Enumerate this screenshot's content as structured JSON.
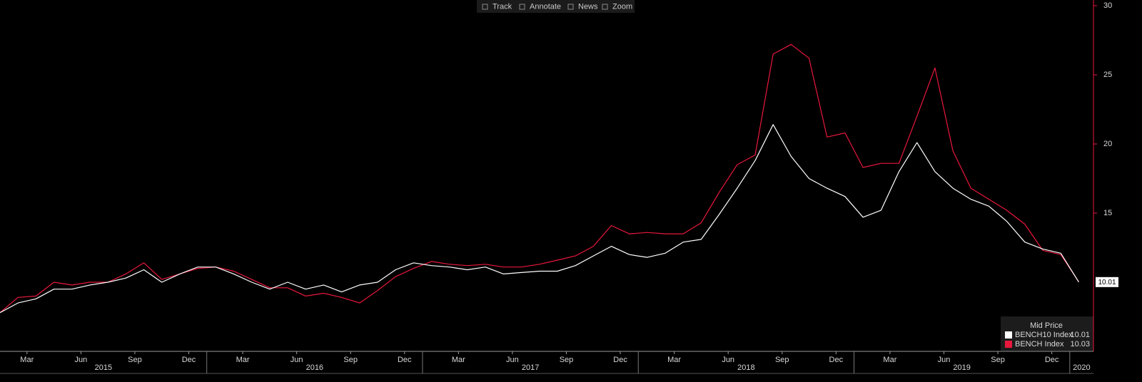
{
  "toolbar": [
    "Track",
    "Annotate",
    "News",
    "Zoom"
  ],
  "chart_data": {
    "type": "line",
    "x": [
      "2015-01",
      "2015-02",
      "2015-03",
      "2015-04",
      "2015-05",
      "2015-06",
      "2015-07",
      "2015-08",
      "2015-09",
      "2015-10",
      "2015-11",
      "2015-12",
      "2016-01",
      "2016-02",
      "2016-03",
      "2016-04",
      "2016-05",
      "2016-06",
      "2016-07",
      "2016-08",
      "2016-09",
      "2016-10",
      "2016-11",
      "2016-12",
      "2017-01",
      "2017-02",
      "2017-03",
      "2017-04",
      "2017-05",
      "2017-06",
      "2017-07",
      "2017-08",
      "2017-09",
      "2017-10",
      "2017-11",
      "2017-12",
      "2018-01",
      "2018-02",
      "2018-03",
      "2018-04",
      "2018-05",
      "2018-06",
      "2018-07",
      "2018-08",
      "2018-09",
      "2018-10",
      "2018-11",
      "2018-12",
      "2019-01",
      "2019-02",
      "2019-03",
      "2019-04",
      "2019-05",
      "2019-06",
      "2019-07",
      "2019-08",
      "2019-09",
      "2019-10",
      "2019-11",
      "2019-12",
      "2020-01"
    ],
    "series": [
      {
        "name": "BENCH10 Index",
        "color": "#ffffff",
        "values": [
          7.8,
          8.5,
          8.8,
          9.5,
          9.5,
          9.8,
          10.0,
          10.3,
          10.9,
          10.0,
          10.6,
          11.1,
          11.1,
          10.6,
          10.0,
          9.5,
          10.0,
          9.5,
          9.8,
          9.3,
          9.8,
          10.0,
          10.9,
          11.4,
          11.2,
          11.1,
          10.9,
          11.1,
          10.6,
          10.7,
          10.8,
          10.8,
          11.2,
          11.9,
          12.6,
          12.0,
          11.8,
          12.1,
          12.9,
          13.1,
          14.9,
          16.8,
          18.8,
          21.4,
          19.1,
          17.5,
          16.8,
          16.2,
          14.7,
          15.2,
          18.0,
          20.1,
          18.0,
          16.8,
          16.0,
          15.5,
          14.4,
          12.9,
          12.4,
          12.1,
          10.01
        ]
      },
      {
        "name": "BENCH Index",
        "color": "#e8183c",
        "values": [
          7.8,
          8.9,
          9.0,
          10.0,
          9.8,
          10.0,
          10.0,
          10.6,
          11.4,
          10.2,
          10.6,
          11.0,
          11.1,
          10.8,
          10.2,
          9.6,
          9.6,
          9.0,
          9.2,
          8.9,
          8.5,
          9.4,
          10.4,
          11.0,
          11.5,
          11.3,
          11.2,
          11.3,
          11.1,
          11.1,
          11.3,
          11.6,
          11.9,
          12.6,
          14.1,
          13.5,
          13.6,
          13.5,
          13.5,
          14.3,
          16.5,
          18.5,
          19.2,
          26.5,
          27.2,
          26.2,
          20.5,
          20.8,
          18.3,
          18.6,
          18.6,
          22.0,
          25.5,
          19.5,
          16.8,
          16.0,
          15.2,
          14.2,
          12.3,
          12.0,
          10.03
        ]
      }
    ],
    "ylim": [
      5,
      30
    ],
    "yticks": [
      15,
      20,
      25,
      30
    ],
    "xticks": [
      {
        "value": "2015-03",
        "label": "Mar"
      },
      {
        "value": "2015-06",
        "label": "Jun"
      },
      {
        "value": "2015-09",
        "label": "Sep"
      },
      {
        "value": "2015-12",
        "label": "Dec"
      },
      {
        "value": "2016-03",
        "label": "Mar"
      },
      {
        "value": "2016-06",
        "label": "Jun"
      },
      {
        "value": "2016-09",
        "label": "Sep"
      },
      {
        "value": "2016-12",
        "label": "Dec"
      },
      {
        "value": "2017-03",
        "label": "Mar"
      },
      {
        "value": "2017-06",
        "label": "Jun"
      },
      {
        "value": "2017-09",
        "label": "Sep"
      },
      {
        "value": "2017-12",
        "label": "Dec"
      },
      {
        "value": "2018-03",
        "label": "Mar"
      },
      {
        "value": "2018-06",
        "label": "Jun"
      },
      {
        "value": "2018-09",
        "label": "Sep"
      },
      {
        "value": "2018-12",
        "label": "Dec"
      },
      {
        "value": "2019-03",
        "label": "Mar"
      },
      {
        "value": "2019-06",
        "label": "Jun"
      },
      {
        "value": "2019-09",
        "label": "Sep"
      },
      {
        "value": "2019-12",
        "label": "Dec"
      }
    ],
    "years": [
      "2015",
      "2016",
      "2017",
      "2018",
      "2019",
      "2020"
    ],
    "legend_title": "Mid Price",
    "axis_color": "#e8183c"
  }
}
